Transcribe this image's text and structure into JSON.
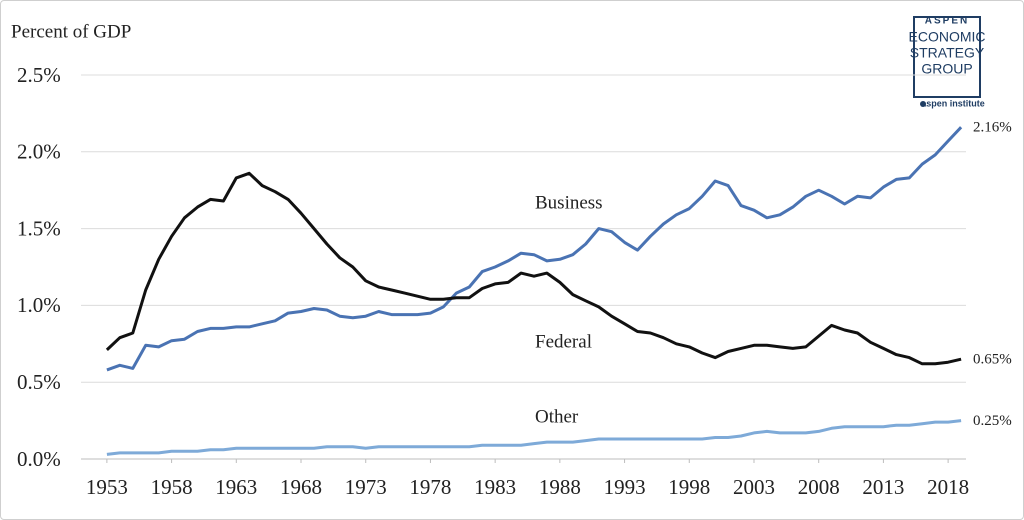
{
  "chart_data": {
    "type": "line",
    "y_label": "Percent of GDP",
    "logo": {
      "lines": [
        "ASPEN",
        "ECONOMIC",
        "STRATEGY",
        "GROUP"
      ],
      "sub": "aspen institute"
    },
    "x": [
      1953,
      1954,
      1955,
      1956,
      1957,
      1958,
      1959,
      1960,
      1961,
      1962,
      1963,
      1964,
      1965,
      1966,
      1967,
      1968,
      1969,
      1970,
      1971,
      1972,
      1973,
      1974,
      1975,
      1976,
      1977,
      1978,
      1979,
      1980,
      1981,
      1982,
      1983,
      1984,
      1985,
      1986,
      1987,
      1988,
      1989,
      1990,
      1991,
      1992,
      1993,
      1994,
      1995,
      1996,
      1997,
      1998,
      1999,
      2000,
      2001,
      2002,
      2003,
      2004,
      2005,
      2006,
      2007,
      2008,
      2009,
      2010,
      2011,
      2012,
      2013,
      2014,
      2015,
      2016,
      2017,
      2018,
      2019
    ],
    "xlim": [
      1951,
      2020
    ],
    "xticks": [
      1953,
      1958,
      1963,
      1968,
      1973,
      1978,
      1983,
      1988,
      1993,
      1998,
      2003,
      2008,
      2013,
      2018
    ],
    "ylim": [
      0,
      2.5
    ],
    "yticks": [
      {
        "value": 0,
        "label": "0.0%"
      },
      {
        "value": 0.5,
        "label": "0.5%"
      },
      {
        "value": 1,
        "label": "1.0%"
      },
      {
        "value": 1.5,
        "label": "1.5%"
      },
      {
        "value": 2,
        "label": "2.0%"
      },
      {
        "value": 2.5,
        "label": "2.5%"
      }
    ],
    "grid": true,
    "series": [
      {
        "name": "Business",
        "color": "#4a73b3",
        "values": [
          0.58,
          0.61,
          0.59,
          0.74,
          0.73,
          0.77,
          0.78,
          0.83,
          0.85,
          0.85,
          0.86,
          0.86,
          0.88,
          0.9,
          0.95,
          0.96,
          0.98,
          0.97,
          0.93,
          0.92,
          0.93,
          0.96,
          0.94,
          0.94,
          0.94,
          0.95,
          0.99,
          1.08,
          1.12,
          1.22,
          1.25,
          1.29,
          1.34,
          1.33,
          1.29,
          1.3,
          1.33,
          1.4,
          1.5,
          1.48,
          1.41,
          1.36,
          1.45,
          1.53,
          1.59,
          1.63,
          1.71,
          1.81,
          1.78,
          1.65,
          1.62,
          1.57,
          1.59,
          1.64,
          1.71,
          1.75,
          1.71,
          1.66,
          1.71,
          1.7,
          1.77,
          1.82,
          1.83,
          1.92,
          1.98,
          2.07,
          2.16
        ],
        "value_labels": [
          null,
          null,
          null,
          null,
          null,
          null,
          null,
          null,
          null,
          null,
          null,
          null,
          null,
          null,
          null,
          null,
          null,
          null,
          null,
          null,
          null,
          null,
          null,
          null,
          null,
          null,
          null,
          null,
          null,
          null,
          null,
          null,
          null,
          null,
          null,
          null,
          null,
          null,
          null,
          null,
          null,
          null,
          null,
          null,
          null,
          null,
          null,
          null,
          null,
          null,
          null,
          null,
          null,
          null,
          null,
          null,
          null,
          null,
          null,
          null,
          null,
          null,
          null,
          null,
          null,
          null,
          "2.16%"
        ]
      },
      {
        "name": "Federal",
        "color": "#111111",
        "values": [
          0.71,
          0.79,
          0.82,
          1.1,
          1.3,
          1.45,
          1.57,
          1.64,
          1.69,
          1.68,
          1.83,
          1.86,
          1.78,
          1.74,
          1.69,
          1.6,
          1.5,
          1.4,
          1.31,
          1.25,
          1.16,
          1.12,
          1.1,
          1.08,
          1.06,
          1.04,
          1.04,
          1.05,
          1.05,
          1.11,
          1.14,
          1.15,
          1.21,
          1.19,
          1.21,
          1.15,
          1.07,
          1.03,
          0.99,
          0.93,
          0.88,
          0.83,
          0.82,
          0.79,
          0.75,
          0.73,
          0.69,
          0.66,
          0.7,
          0.72,
          0.74,
          0.74,
          0.73,
          0.72,
          0.73,
          0.8,
          0.87,
          0.84,
          0.82,
          0.76,
          0.72,
          0.68,
          0.66,
          0.62,
          0.62,
          0.63,
          0.65
        ],
        "value_labels": [
          null,
          null,
          null,
          null,
          null,
          null,
          null,
          null,
          null,
          null,
          null,
          null,
          null,
          null,
          null,
          null,
          null,
          null,
          null,
          null,
          null,
          null,
          null,
          null,
          null,
          null,
          null,
          null,
          null,
          null,
          null,
          null,
          null,
          null,
          null,
          null,
          null,
          null,
          null,
          null,
          null,
          null,
          null,
          null,
          null,
          null,
          null,
          null,
          null,
          null,
          null,
          null,
          null,
          null,
          null,
          null,
          null,
          null,
          null,
          null,
          null,
          null,
          null,
          null,
          null,
          null,
          "0.65%"
        ]
      },
      {
        "name": "Other",
        "color": "#7eaad8",
        "values": [
          0.03,
          0.04,
          0.04,
          0.04,
          0.04,
          0.05,
          0.05,
          0.05,
          0.06,
          0.06,
          0.07,
          0.07,
          0.07,
          0.07,
          0.07,
          0.07,
          0.07,
          0.08,
          0.08,
          0.08,
          0.07,
          0.08,
          0.08,
          0.08,
          0.08,
          0.08,
          0.08,
          0.08,
          0.08,
          0.09,
          0.09,
          0.09,
          0.09,
          0.1,
          0.11,
          0.11,
          0.11,
          0.12,
          0.13,
          0.13,
          0.13,
          0.13,
          0.13,
          0.13,
          0.13,
          0.13,
          0.13,
          0.14,
          0.14,
          0.15,
          0.17,
          0.18,
          0.17,
          0.17,
          0.17,
          0.18,
          0.2,
          0.21,
          0.21,
          0.21,
          0.21,
          0.22,
          0.22,
          0.23,
          0.24,
          0.24,
          0.25
        ],
        "value_labels": [
          null,
          null,
          null,
          null,
          null,
          null,
          null,
          null,
          null,
          null,
          null,
          null,
          null,
          null,
          null,
          null,
          null,
          null,
          null,
          null,
          null,
          null,
          null,
          null,
          null,
          null,
          null,
          null,
          null,
          null,
          null,
          null,
          null,
          null,
          null,
          null,
          null,
          null,
          null,
          null,
          null,
          null,
          null,
          null,
          null,
          null,
          null,
          null,
          null,
          null,
          null,
          null,
          null,
          null,
          null,
          null,
          null,
          null,
          null,
          null,
          null,
          null,
          null,
          null,
          null,
          null,
          "0.25%"
        ]
      }
    ]
  }
}
